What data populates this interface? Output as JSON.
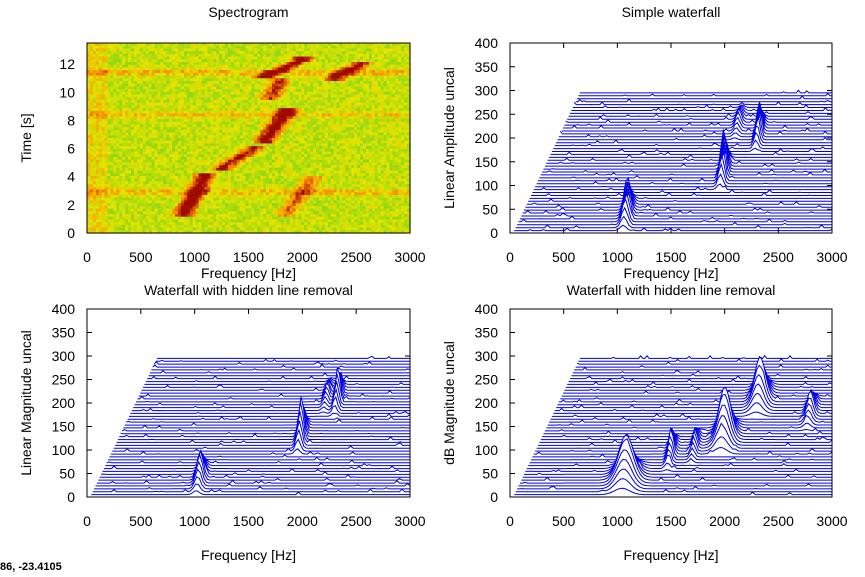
{
  "status_readout": "86, -23.4105",
  "colors": {
    "waterfall_line": "#0000e0",
    "spectrogram_low": "#22cc22",
    "spectrogram_mid": "#e8e800",
    "spectrogram_high": "#d00000"
  },
  "chart_data": [
    {
      "type": "heatmap",
      "title": "Spectrogram",
      "xlabel": "Frequency [Hz]",
      "ylabel": "Time [s]",
      "xlim": [
        0,
        3000
      ],
      "ylim": [
        0,
        13.5
      ],
      "x_ticks": [
        "0",
        "500",
        "1000",
        "1500",
        "2000",
        "2500",
        "3000"
      ],
      "y_ticks": [
        "0",
        "2",
        "4",
        "6",
        "8",
        "10",
        "12"
      ],
      "y_tick_values": [
        0,
        2,
        4,
        6,
        8,
        10,
        12
      ],
      "ridges": [
        {
          "f0": 900,
          "f1": 1100,
          "t0": 1.4,
          "t1": 4.1,
          "strength": 1.0
        },
        {
          "f0": 1250,
          "f1": 1550,
          "t0": 4.6,
          "t1": 6.0,
          "strength": 0.8
        },
        {
          "f0": 1650,
          "f1": 1850,
          "t0": 6.5,
          "t1": 8.6,
          "strength": 1.0
        },
        {
          "f0": 1700,
          "f1": 1800,
          "t0": 9.6,
          "t1": 10.8,
          "strength": 0.7
        },
        {
          "f0": 1650,
          "f1": 2000,
          "t0": 11.1,
          "t1": 12.3,
          "strength": 1.0
        },
        {
          "f0": 2300,
          "f1": 2550,
          "t0": 11.0,
          "t1": 12.0,
          "strength": 0.9
        },
        {
          "f0": 1850,
          "f1": 2100,
          "t0": 1.4,
          "t1": 3.9,
          "strength": 0.5
        }
      ],
      "bands": [
        {
          "t": 2.9,
          "strength": 0.45
        },
        {
          "t": 8.4,
          "strength": 0.35
        },
        {
          "t": 11.4,
          "strength": 0.5
        }
      ]
    },
    {
      "type": "line",
      "title": "Simple waterfall",
      "xlabel": "Frequency [Hz]",
      "ylabel": "Linear Amplitude uncal",
      "xlim": [
        0,
        3000
      ],
      "ylim": [
        0,
        400
      ],
      "x_ticks": [
        "0",
        "500",
        "1000",
        "1500",
        "2000",
        "2500",
        "3000"
      ],
      "y_ticks": [
        "0",
        "50",
        "100",
        "150",
        "200",
        "250",
        "300",
        "350",
        "400"
      ],
      "y_tick_values": [
        0,
        50,
        100,
        150,
        200,
        250,
        300,
        350,
        400
      ],
      "hidden_line_removal": false,
      "traces": 48,
      "offset_start": 5,
      "offset_end": 295,
      "shear_start_hz": 0,
      "shear_end_hz": 610,
      "peaks": [
        {
          "f": 1090,
          "height": 80,
          "width": 55,
          "at": 0.12
        },
        {
          "f": 1990,
          "height": 95,
          "width": 45,
          "at": 0.42
        },
        {
          "f": 2320,
          "height": 70,
          "width": 40,
          "at": 0.7
        },
        {
          "f": 2130,
          "height": 30,
          "width": 45,
          "at": 0.78
        }
      ]
    },
    {
      "type": "line",
      "title": "Waterfall with hidden line removal",
      "xlabel": "Frequency [Hz]",
      "ylabel": "Linear Magnitude uncal",
      "xlim": [
        0,
        3000
      ],
      "ylim": [
        0,
        400
      ],
      "x_ticks": [
        "0",
        "500",
        "1000",
        "1500",
        "2000",
        "2500",
        "3000"
      ],
      "y_ticks": [
        "0",
        "50",
        "100",
        "150",
        "200",
        "250",
        "300",
        "350",
        "400"
      ],
      "y_tick_values": [
        0,
        50,
        100,
        150,
        200,
        250,
        300,
        350,
        400
      ],
      "hidden_line_removal": true,
      "traces": 48,
      "offset_start": 5,
      "offset_end": 295,
      "shear_start_hz": 0,
      "shear_end_hz": 610,
      "peaks": [
        {
          "f": 1050,
          "height": 60,
          "width": 55,
          "at": 0.12
        },
        {
          "f": 1990,
          "height": 90,
          "width": 45,
          "at": 0.42
        },
        {
          "f": 2330,
          "height": 70,
          "width": 40,
          "at": 0.7
        },
        {
          "f": 2230,
          "height": 30,
          "width": 40,
          "at": 0.72
        }
      ]
    },
    {
      "type": "line",
      "title": "Waterfall with hidden line removal",
      "xlabel": "Frequency [Hz]",
      "ylabel": "dB Magnitude uncal",
      "xlim": [
        0,
        3000
      ],
      "ylim": [
        0,
        400
      ],
      "x_ticks": [
        "0",
        "500",
        "1000",
        "1500",
        "2000",
        "2500",
        "3000"
      ],
      "y_ticks": [
        "0",
        "50",
        "100",
        "150",
        "200",
        "250",
        "300",
        "350",
        "400"
      ],
      "y_tick_values": [
        0,
        50,
        100,
        150,
        200,
        250,
        300,
        350,
        400
      ],
      "hidden_line_removal": true,
      "traces": 48,
      "offset_start": 5,
      "offset_end": 295,
      "shear_start_hz": 0,
      "shear_end_hz": 610,
      "peaks": [
        {
          "f": 1080,
          "height": 95,
          "width": 140,
          "at": 0.12
        },
        {
          "f": 1500,
          "height": 55,
          "width": 45,
          "at": 0.3
        },
        {
          "f": 1720,
          "height": 40,
          "width": 40,
          "at": 0.35
        },
        {
          "f": 2000,
          "height": 110,
          "width": 110,
          "at": 0.42
        },
        {
          "f": 2330,
          "height": 90,
          "width": 100,
          "at": 0.7
        },
        {
          "f": 2800,
          "height": 50,
          "width": 60,
          "at": 0.6
        }
      ]
    }
  ]
}
